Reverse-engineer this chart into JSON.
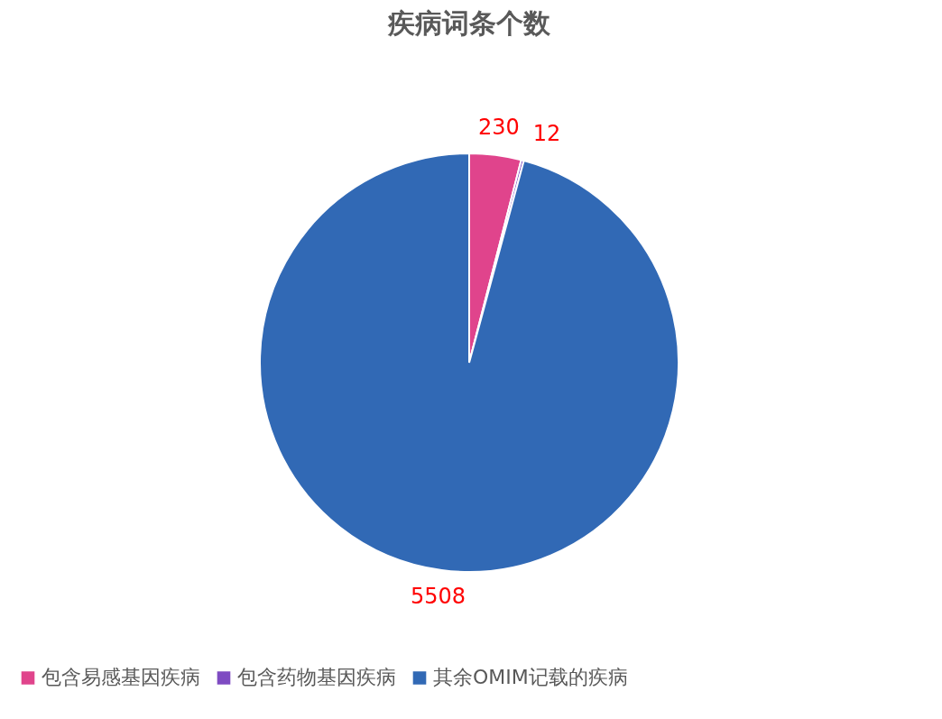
{
  "chart_data": {
    "type": "pie",
    "title": "疾病词条个数",
    "categories": [
      "包含易感基因疾病",
      "包含药物基因疾病",
      "其余OMIM记载的疾病"
    ],
    "values": [
      230,
      12,
      5508
    ],
    "colors": [
      "#e0448c",
      "#7e4bc2",
      "#3169b5"
    ],
    "data_labels": true,
    "legend": "bottom"
  }
}
